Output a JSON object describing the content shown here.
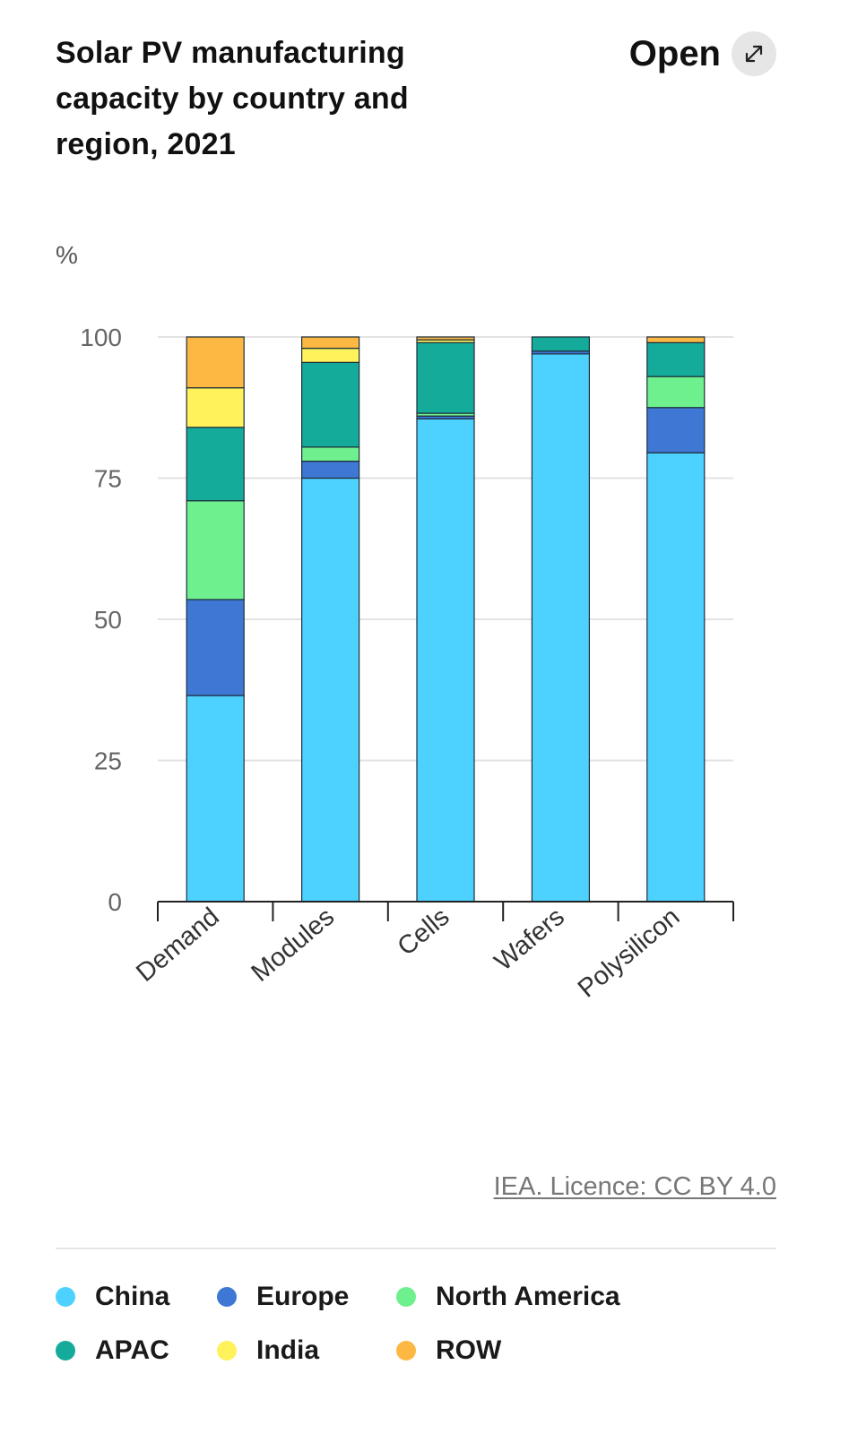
{
  "header": {
    "title": "Solar PV manufacturing capacity by country and region, 2021",
    "open_label": "Open",
    "open_icon": "expand-arrows-icon"
  },
  "footer": {
    "licence": "IEA. Licence: CC BY 4.0"
  },
  "chart_data": {
    "type": "bar",
    "stacked": true,
    "ylabel": "%",
    "ylim": [
      0,
      100
    ],
    "yticks": [
      0,
      25,
      50,
      75,
      100
    ],
    "grid": true,
    "legend_position": "bottom",
    "categories": [
      "Demand",
      "Modules",
      "Cells",
      "Wafers",
      "Polysilicon"
    ],
    "series": [
      {
        "name": "China",
        "color": "#4dd2ff",
        "values": [
          36.5,
          75,
          85.5,
          97,
          79.5
        ]
      },
      {
        "name": "Europe",
        "color": "#3e78d4",
        "values": [
          17,
          3,
          0.5,
          0.5,
          8
        ]
      },
      {
        "name": "North America",
        "color": "#6ef08f",
        "values": [
          17.5,
          2.5,
          0.5,
          0,
          5.5
        ]
      },
      {
        "name": "APAC",
        "color": "#14ab9a",
        "values": [
          13,
          15,
          12.5,
          2.5,
          6
        ]
      },
      {
        "name": "India",
        "color": "#fff25a",
        "values": [
          7,
          2.5,
          0.5,
          0,
          0
        ]
      },
      {
        "name": "ROW",
        "color": "#fdb844",
        "values": [
          9,
          2,
          0.5,
          0,
          1
        ]
      }
    ]
  },
  "legend": {
    "items": [
      {
        "label": "China",
        "color": "#4dd2ff"
      },
      {
        "label": "Europe",
        "color": "#3e78d4"
      },
      {
        "label": "North America",
        "color": "#6ef08f"
      },
      {
        "label": "APAC",
        "color": "#14ab9a"
      },
      {
        "label": "India",
        "color": "#fff25a"
      },
      {
        "label": "ROW",
        "color": "#fdb844"
      }
    ]
  }
}
